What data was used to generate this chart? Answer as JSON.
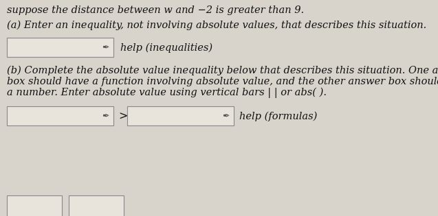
{
  "bg_color": "#d8d4cc",
  "top_text": "suppose the distance between w and −2 is greater than 9.",
  "part_a_label": "(a) Enter an inequality, not involving absolute values, that describes this situation.",
  "part_a_help": "help (inequalities)",
  "part_b_label_line1": "(b) Complete the absolute value inequality below that describes this situation. One answer",
  "part_b_label_line2": "box should have a function involving absolute value, and the other answer box should have",
  "part_b_label_line3": "a number. Enter absolute value using vertical bars | | or abs( ).",
  "part_b_help": "help (formulas)",
  "greater_than": ">",
  "text_color": "#111111",
  "box_color": "#e8e4dc",
  "box_edge_color": "#888888",
  "font_size_main": 10.5,
  "pencil_color": "#555555"
}
